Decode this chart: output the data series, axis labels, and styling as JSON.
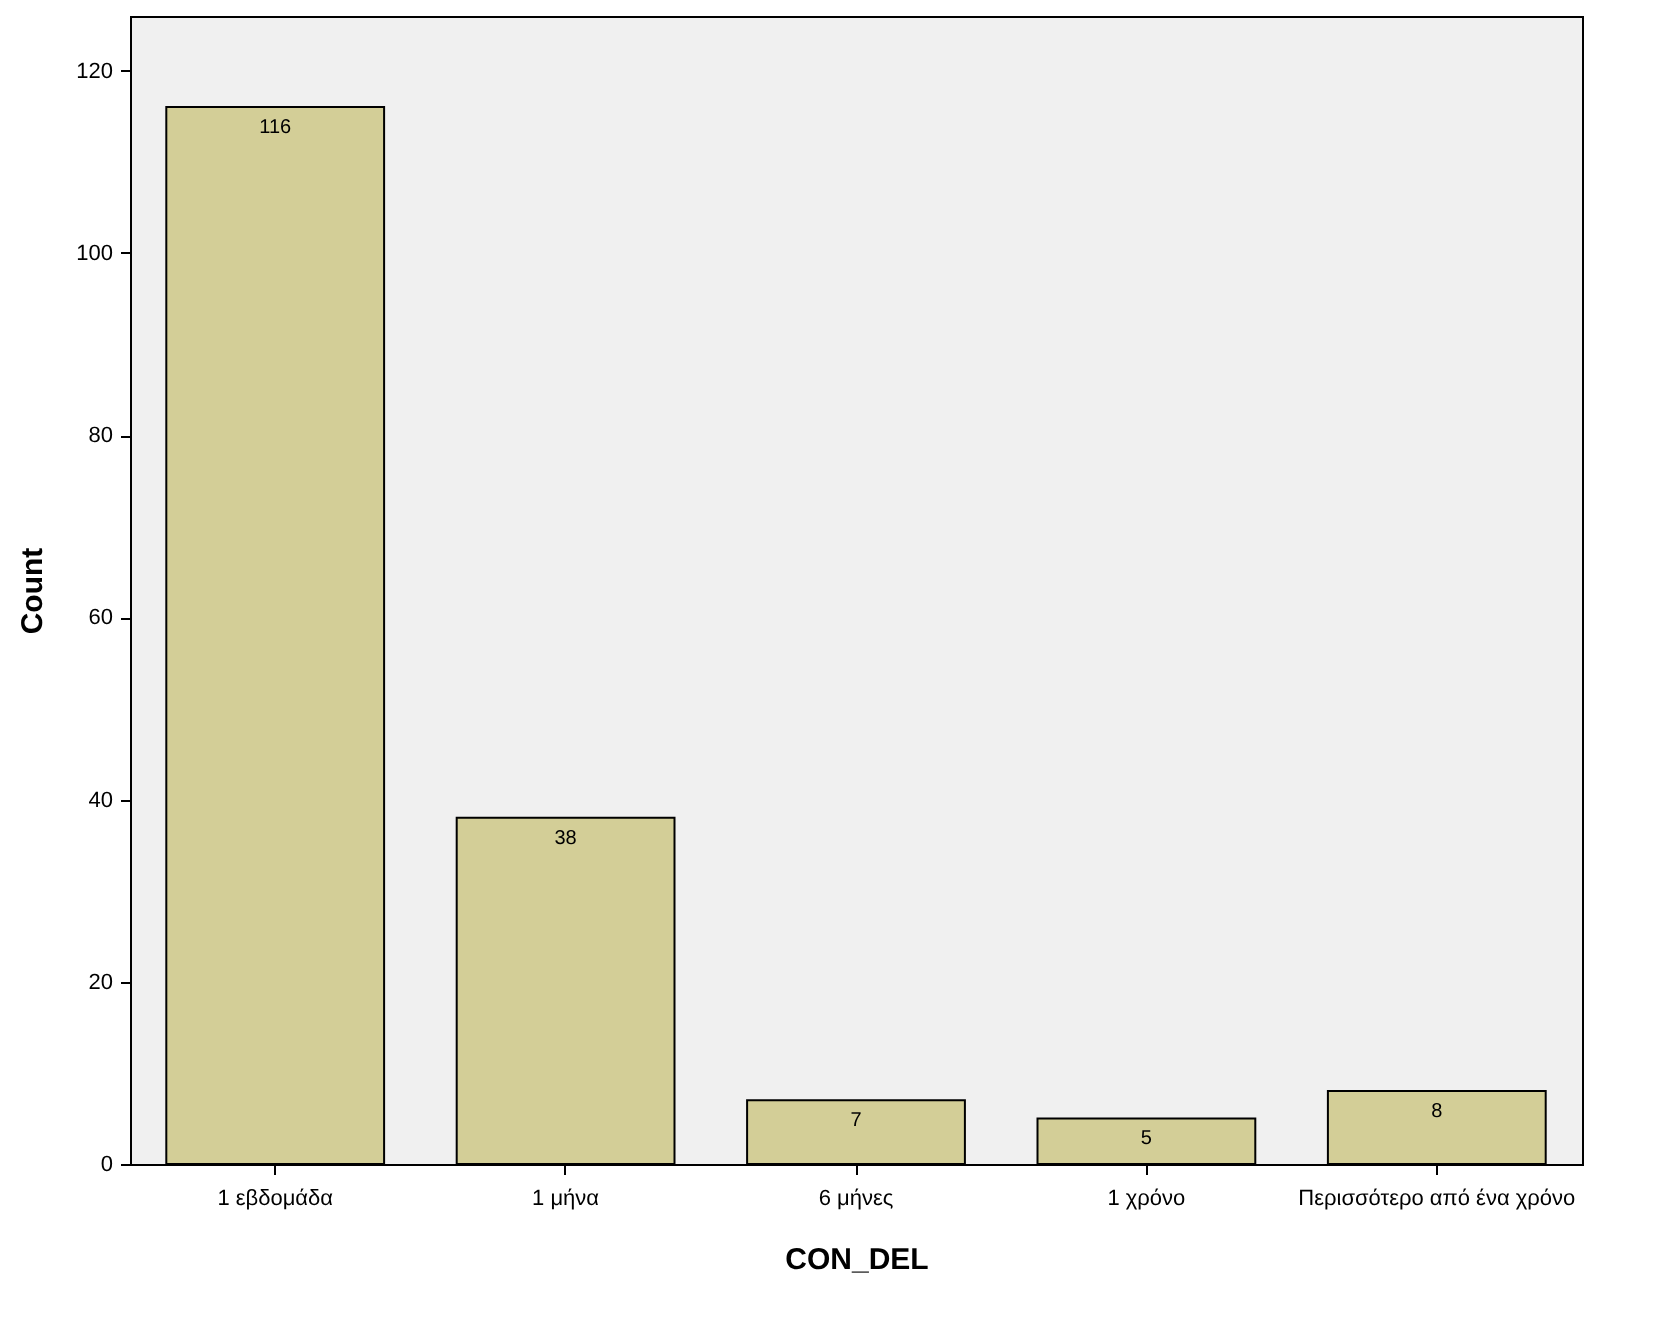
{
  "chart_data": {
    "type": "bar",
    "xlabel": "CON_DEL",
    "ylabel": "Count",
    "categories": [
      "1 εβδομάδα",
      "1 μήνα",
      "6 μήνες",
      "1 χρόνο",
      "Περισσότερο από ένα χρόνο"
    ],
    "values": [
      116,
      38,
      7,
      5,
      8
    ],
    "color": "#d3ce97",
    "data_labels": true,
    "ylim": [
      0,
      126
    ],
    "yticks": [
      0,
      20,
      40,
      60,
      80,
      100,
      120
    ],
    "grid": false
  }
}
